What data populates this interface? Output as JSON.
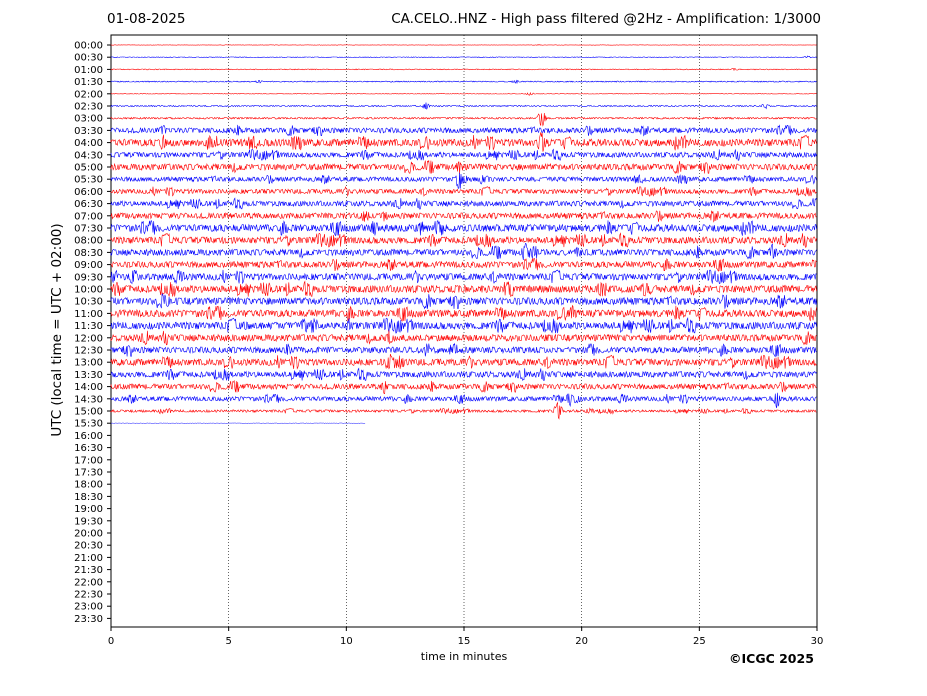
{
  "header": {
    "date": "01-08-2025",
    "title": "CA.CELO..HNZ - High pass filtered @2Hz - Amplification: 1/3000"
  },
  "footer": {
    "copyright": "©ICGC 2025"
  },
  "chart_data": {
    "type": "line",
    "title": "CA.CELO..HNZ - High pass filtered @2Hz - Amplification: 1/3000",
    "xlabel": "time in minutes",
    "ylabel": "UTC (local time = UTC + 02:00)",
    "xlim": [
      0,
      30
    ],
    "x_ticks": [
      0,
      5,
      10,
      15,
      20,
      25,
      30
    ],
    "vertical_gridlines_at": [
      5,
      10,
      15,
      20,
      25
    ],
    "grid": "vertical dotted",
    "row_labels": [
      "00:00",
      "00:30",
      "01:00",
      "01:30",
      "02:00",
      "02:30",
      "03:00",
      "03:30",
      "04:00",
      "04:30",
      "05:00",
      "05:30",
      "06:00",
      "06:30",
      "07:00",
      "07:30",
      "08:00",
      "08:30",
      "09:00",
      "09:30",
      "10:00",
      "10:30",
      "11:00",
      "11:30",
      "12:00",
      "12:30",
      "13:00",
      "13:30",
      "14:00",
      "14:30",
      "15:00",
      "15:30",
      "16:00",
      "16:30",
      "17:00",
      "17:30",
      "18:00",
      "18:30",
      "19:00",
      "19:30",
      "20:00",
      "20:30",
      "21:00",
      "21:30",
      "22:00",
      "22:30",
      "23:00",
      "23:30"
    ],
    "colors": {
      "even_rows": "#ff0000",
      "odd_rows": "#0000ff"
    },
    "last_trace": {
      "row": "15:30",
      "end_minute": 10.8
    },
    "noise_level": [
      0.2,
      0.3,
      0.4,
      0.5,
      0.2,
      0.6,
      0.8,
      2.5,
      3.5,
      2.5,
      3.0,
      2.2,
      2.2,
      2.5,
      2.8,
      3.5,
      3.2,
      3.0,
      3.0,
      3.2,
      3.5,
      3.5,
      3.5,
      3.5,
      3.2,
      3.0,
      3.2,
      2.8,
      2.6,
      2.2,
      1.2,
      0.2
    ],
    "events": [
      {
        "row": "00:00",
        "minute": 18.2,
        "amplitude": 0.5
      },
      {
        "row": "00:30",
        "minute": 29.6,
        "amplitude": 1.2
      },
      {
        "row": "01:00",
        "minute": 26.5,
        "amplitude": 1.5
      },
      {
        "row": "01:30",
        "minute": 6.3,
        "amplitude": 2
      },
      {
        "row": "01:30",
        "minute": 17.2,
        "amplitude": 2
      },
      {
        "row": "02:00",
        "minute": 17.8,
        "amplitude": 2
      },
      {
        "row": "02:30",
        "minute": 13.4,
        "amplitude": 4
      },
      {
        "row": "02:30",
        "minute": 27.8,
        "amplitude": 3
      },
      {
        "row": "03:00",
        "minute": 18.3,
        "amplitude": 10
      },
      {
        "row": "03:30",
        "minute": 2.2,
        "amplitude": 7
      },
      {
        "row": "04:00",
        "minute": 2.2,
        "amplitude": 10
      },
      {
        "row": "04:00",
        "minute": 18.3,
        "amplitude": 14
      },
      {
        "row": "05:00",
        "minute": 14.8,
        "amplitude": 8
      },
      {
        "row": "05:30",
        "minute": 14.8,
        "amplitude": 12
      },
      {
        "row": "07:30",
        "minute": 11.2,
        "amplitude": 10
      },
      {
        "row": "08:30",
        "minute": 17.6,
        "amplitude": 12
      },
      {
        "row": "08:30",
        "minute": 28.1,
        "amplitude": 12
      },
      {
        "row": "10:00",
        "minute": 14.6,
        "amplitude": 6
      },
      {
        "row": "10:30",
        "minute": 2.4,
        "amplitude": 6
      },
      {
        "row": "11:00",
        "minute": 19.6,
        "amplitude": 10
      },
      {
        "row": "11:30",
        "minute": 5.7,
        "amplitude": 6
      },
      {
        "row": "12:00",
        "minute": 11.8,
        "amplitude": 10
      },
      {
        "row": "12:30",
        "minute": 7.5,
        "amplitude": 10
      },
      {
        "row": "13:00",
        "minute": 11.8,
        "amplitude": 12
      },
      {
        "row": "14:00",
        "minute": 11.6,
        "amplitude": 8
      },
      {
        "row": "14:30",
        "minute": 19.5,
        "amplitude": 8
      },
      {
        "row": "14:30",
        "minute": 28.3,
        "amplitude": 10
      },
      {
        "row": "15:00",
        "minute": 19.0,
        "amplitude": 12
      }
    ]
  }
}
